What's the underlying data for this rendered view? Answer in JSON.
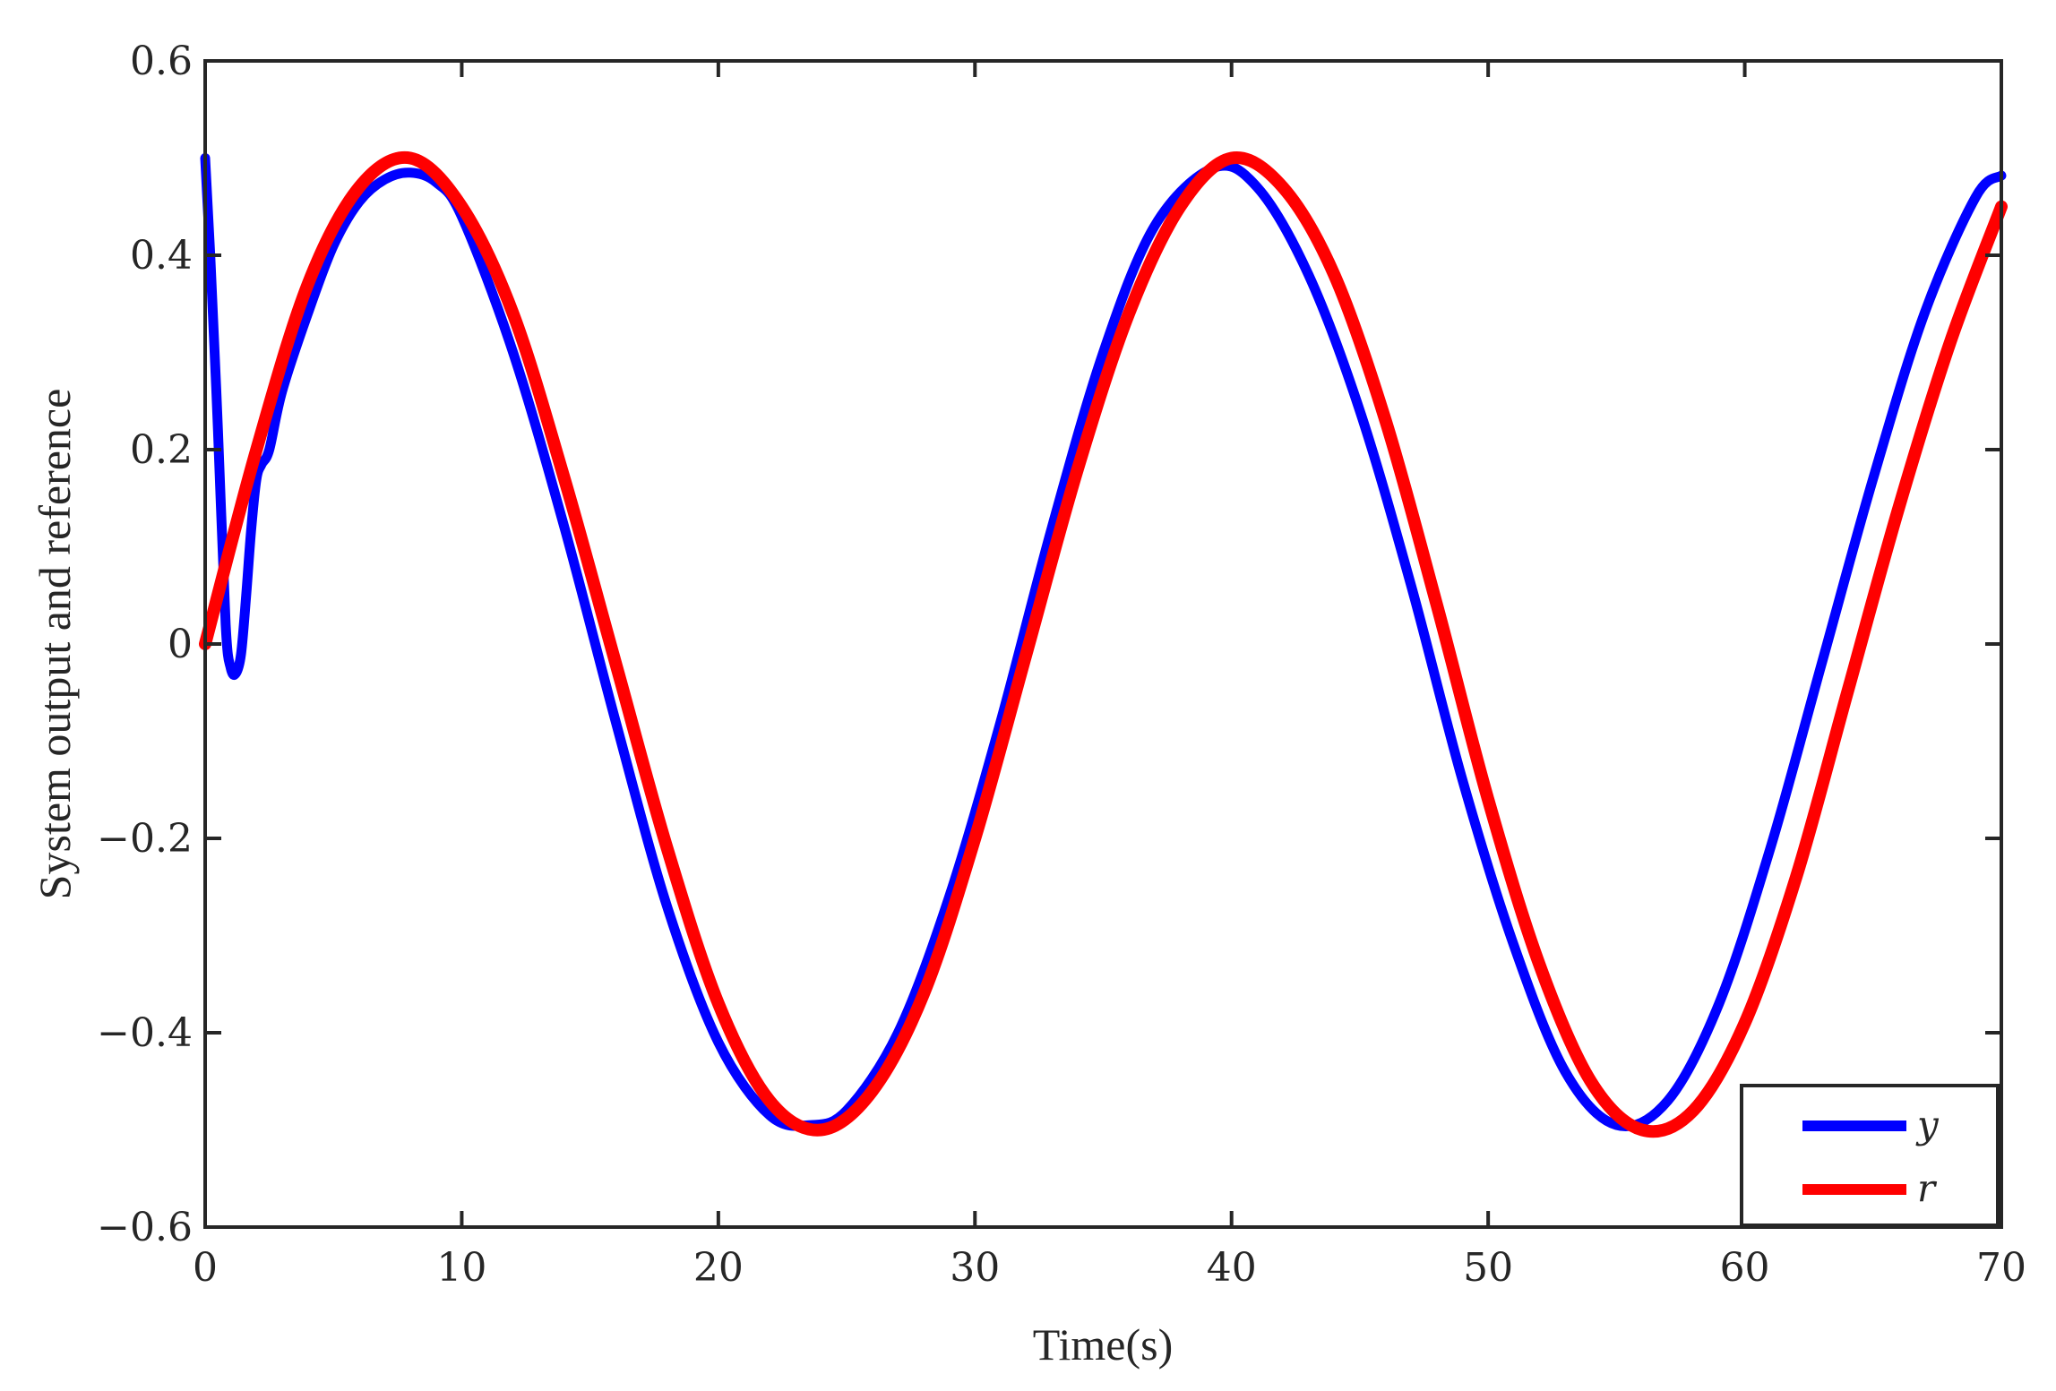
{
  "chart_data": {
    "type": "line",
    "xlabel": "Time(s)",
    "ylabel": "System output and reference",
    "xlim": [
      0,
      70
    ],
    "ylim": [
      -0.6,
      0.6
    ],
    "xticks": [
      0,
      10,
      20,
      30,
      40,
      50,
      60,
      70
    ],
    "yticks": [
      -0.6,
      -0.4,
      -0.2,
      0,
      0.2,
      0.4,
      0.6
    ],
    "xtick_labels": [
      "0",
      "10",
      "20",
      "30",
      "40",
      "50",
      "60",
      "70"
    ],
    "ytick_labels": [
      "−0.6",
      "−0.4",
      "−0.2",
      "0",
      "0.2",
      "0.4",
      "0.6"
    ],
    "grid": false,
    "legend_position": "bottom-right",
    "colors": {
      "y": "#0000ff",
      "r": "#ff0000",
      "axes": "#262626"
    },
    "series": [
      {
        "name": "y",
        "color": "#0000ff",
        "x": [
          0,
          0.2,
          0.5,
          0.8,
          1.0,
          1.2,
          1.4,
          1.6,
          1.8,
          2.0,
          2.2,
          2.5,
          3,
          4,
          5,
          6,
          7,
          8,
          9,
          10,
          12,
          14,
          16,
          18,
          20,
          22,
          23.6,
          25,
          27,
          29,
          31,
          33,
          35,
          37,
          39.3,
          41,
          43,
          45,
          47,
          49,
          51,
          53,
          55,
          57,
          59,
          61,
          63,
          65,
          67,
          69,
          70
        ],
        "values": [
          0.5,
          0.4,
          0.22,
          0.02,
          -0.025,
          -0.03,
          -0.01,
          0.05,
          0.12,
          0.17,
          0.185,
          0.2,
          0.26,
          0.34,
          0.41,
          0.455,
          0.478,
          0.485,
          0.475,
          0.44,
          0.3,
          0.12,
          -0.08,
          -0.27,
          -0.41,
          -0.485,
          -0.495,
          -0.48,
          -0.4,
          -0.26,
          -0.08,
          0.12,
          0.3,
          0.43,
          0.49,
          0.47,
          0.38,
          0.24,
          0.06,
          -0.14,
          -0.31,
          -0.44,
          -0.495,
          -0.47,
          -0.37,
          -0.21,
          -0.02,
          0.17,
          0.34,
          0.46,
          0.482
        ]
      },
      {
        "name": "r",
        "color": "#ff0000",
        "x": [
          0,
          2,
          4,
          6,
          8,
          10,
          12,
          14,
          16,
          18,
          20,
          22,
          24,
          26,
          28,
          30,
          32,
          34,
          36,
          38,
          40,
          42,
          44,
          46,
          48,
          50,
          52,
          54,
          56,
          58,
          60,
          62,
          64,
          66,
          68,
          70
        ],
        "values": [
          0,
          0.2,
          0.37,
          0.47,
          0.5,
          0.45,
          0.34,
          0.17,
          -0.02,
          -0.21,
          -0.37,
          -0.47,
          -0.5,
          -0.46,
          -0.36,
          -0.2,
          -0.01,
          0.18,
          0.34,
          0.45,
          0.5,
          0.47,
          0.38,
          0.23,
          0.04,
          -0.16,
          -0.33,
          -0.45,
          -0.5,
          -0.48,
          -0.39,
          -0.24,
          -0.05,
          0.14,
          0.31,
          0.45
        ]
      }
    ]
  }
}
